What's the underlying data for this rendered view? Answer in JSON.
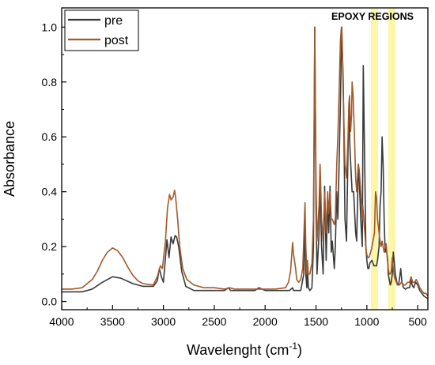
{
  "chart_data": {
    "type": "line",
    "xlabel_main": "Wavelenght (cm",
    "xlabel_sup": "-1",
    "xlabel_end": ")",
    "ylabel": "Absorbance",
    "xlim": [
      4000,
      400
    ],
    "ylim": [
      -0.03,
      1.07
    ],
    "x_reversed": true,
    "x_ticks": [
      4000,
      3500,
      3000,
      2500,
      2000,
      1500,
      1000,
      500
    ],
    "y_ticks": [
      0.0,
      0.2,
      0.4,
      0.6,
      0.8,
      1.0
    ],
    "y_tick_labels": [
      "0.0",
      "0.2",
      "0.4",
      "0.6",
      "0.8",
      "1.0"
    ],
    "annotation": "EPOXY REGIONS",
    "highlight_bands": [
      [
        960,
        890
      ],
      [
        790,
        720
      ]
    ],
    "highlight_color": "#fbf7a6",
    "legend_position": "top-left",
    "series": [
      {
        "name": "pre",
        "color": "#3a3a3a",
        "points": [
          [
            4000,
            0.035
          ],
          [
            3900,
            0.035
          ],
          [
            3800,
            0.035
          ],
          [
            3700,
            0.045
          ],
          [
            3600,
            0.07
          ],
          [
            3500,
            0.09
          ],
          [
            3420,
            0.085
          ],
          [
            3300,
            0.065
          ],
          [
            3200,
            0.055
          ],
          [
            3100,
            0.055
          ],
          [
            3060,
            0.075
          ],
          [
            3040,
            0.12
          ],
          [
            3020,
            0.09
          ],
          [
            3000,
            0.07
          ],
          [
            2965,
            0.225
          ],
          [
            2945,
            0.16
          ],
          [
            2925,
            0.235
          ],
          [
            2905,
            0.21
          ],
          [
            2885,
            0.24
          ],
          [
            2870,
            0.235
          ],
          [
            2850,
            0.2
          ],
          [
            2820,
            0.11
          ],
          [
            2780,
            0.055
          ],
          [
            2700,
            0.04
          ],
          [
            2600,
            0.04
          ],
          [
            2500,
            0.04
          ],
          [
            2400,
            0.04
          ],
          [
            2360,
            0.05
          ],
          [
            2340,
            0.04
          ],
          [
            2200,
            0.04
          ],
          [
            2100,
            0.04
          ],
          [
            2060,
            0.05
          ],
          [
            2000,
            0.04
          ],
          [
            1900,
            0.04
          ],
          [
            1800,
            0.04
          ],
          [
            1760,
            0.04
          ],
          [
            1730,
            0.05
          ],
          [
            1720,
            0.04
          ],
          [
            1650,
            0.04
          ],
          [
            1620,
            0.1
          ],
          [
            1608,
            0.3
          ],
          [
            1600,
            0.1
          ],
          [
            1590,
            0.05
          ],
          [
            1584,
            0.12
          ],
          [
            1575,
            0.05
          ],
          [
            1560,
            0.04
          ],
          [
            1540,
            0.05
          ],
          [
            1525,
            0.2
          ],
          [
            1512,
            1.0
          ],
          [
            1500,
            0.35
          ],
          [
            1490,
            0.1
          ],
          [
            1470,
            0.25
          ],
          [
            1460,
            0.48
          ],
          [
            1455,
            0.35
          ],
          [
            1445,
            0.2
          ],
          [
            1430,
            0.1
          ],
          [
            1415,
            0.42
          ],
          [
            1400,
            0.15
          ],
          [
            1385,
            0.38
          ],
          [
            1375,
            0.25
          ],
          [
            1362,
            0.42
          ],
          [
            1350,
            0.18
          ],
          [
            1340,
            0.22
          ],
          [
            1320,
            0.12
          ],
          [
            1310,
            0.2
          ],
          [
            1296,
            0.4
          ],
          [
            1285,
            0.3
          ],
          [
            1260,
            0.72
          ],
          [
            1247,
            1.0
          ],
          [
            1232,
            0.8
          ],
          [
            1215,
            0.3
          ],
          [
            1200,
            0.22
          ],
          [
            1185,
            0.55
          ],
          [
            1177,
            0.7
          ],
          [
            1165,
            0.55
          ],
          [
            1145,
            0.4
          ],
          [
            1130,
            0.4
          ],
          [
            1110,
            0.25
          ],
          [
            1100,
            0.22
          ],
          [
            1083,
            0.5
          ],
          [
            1075,
            0.45
          ],
          [
            1060,
            0.3
          ],
          [
            1045,
            0.2
          ],
          [
            1035,
            0.86
          ],
          [
            1025,
            0.6
          ],
          [
            1010,
            0.2
          ],
          [
            1000,
            0.15
          ],
          [
            990,
            0.12
          ],
          [
            980,
            0.12
          ],
          [
            970,
            0.14
          ],
          [
            950,
            0.15
          ],
          [
            930,
            0.13
          ],
          [
            915,
            0.13
          ],
          [
            905,
            0.13
          ],
          [
            895,
            0.15
          ],
          [
            880,
            0.2
          ],
          [
            870,
            0.35
          ],
          [
            860,
            0.4
          ],
          [
            850,
            0.6
          ],
          [
            840,
            0.5
          ],
          [
            830,
            0.3
          ],
          [
            820,
            0.18
          ],
          [
            810,
            0.2
          ],
          [
            795,
            0.15
          ],
          [
            790,
            0.1
          ],
          [
            780,
            0.08
          ],
          [
            770,
            0.06
          ],
          [
            760,
            0.07
          ],
          [
            750,
            0.1
          ],
          [
            740,
            0.18
          ],
          [
            730,
            0.14
          ],
          [
            720,
            0.1
          ],
          [
            710,
            0.08
          ],
          [
            700,
            0.06
          ],
          [
            690,
            0.06
          ],
          [
            680,
            0.08
          ],
          [
            667,
            0.12
          ],
          [
            655,
            0.07
          ],
          [
            640,
            0.05
          ],
          [
            620,
            0.045
          ],
          [
            600,
            0.05
          ],
          [
            580,
            0.05
          ],
          [
            565,
            0.08
          ],
          [
            555,
            0.06
          ],
          [
            540,
            0.05
          ],
          [
            520,
            0.07
          ],
          [
            500,
            0.06
          ],
          [
            480,
            0.04
          ],
          [
            460,
            0.03
          ],
          [
            440,
            0.02
          ],
          [
            420,
            0.015
          ],
          [
            400,
            0.01
          ]
        ]
      },
      {
        "name": "post",
        "color": "#a05a2c",
        "points": [
          [
            4000,
            0.045
          ],
          [
            3900,
            0.045
          ],
          [
            3800,
            0.05
          ],
          [
            3700,
            0.08
          ],
          [
            3650,
            0.11
          ],
          [
            3600,
            0.15
          ],
          [
            3550,
            0.18
          ],
          [
            3500,
            0.195
          ],
          [
            3450,
            0.185
          ],
          [
            3400,
            0.16
          ],
          [
            3350,
            0.125
          ],
          [
            3300,
            0.095
          ],
          [
            3250,
            0.075
          ],
          [
            3200,
            0.065
          ],
          [
            3100,
            0.06
          ],
          [
            3060,
            0.09
          ],
          [
            3030,
            0.13
          ],
          [
            3010,
            0.12
          ],
          [
            2980,
            0.22
          ],
          [
            2960,
            0.34
          ],
          [
            2940,
            0.39
          ],
          [
            2925,
            0.37
          ],
          [
            2905,
            0.38
          ],
          [
            2890,
            0.405
          ],
          [
            2880,
            0.38
          ],
          [
            2860,
            0.3
          ],
          [
            2840,
            0.2
          ],
          [
            2810,
            0.12
          ],
          [
            2770,
            0.08
          ],
          [
            2700,
            0.06
          ],
          [
            2600,
            0.05
          ],
          [
            2500,
            0.05
          ],
          [
            2400,
            0.045
          ],
          [
            2350,
            0.05
          ],
          [
            2300,
            0.045
          ],
          [
            2200,
            0.045
          ],
          [
            2100,
            0.045
          ],
          [
            2000,
            0.045
          ],
          [
            1900,
            0.045
          ],
          [
            1800,
            0.05
          ],
          [
            1770,
            0.07
          ],
          [
            1750,
            0.11
          ],
          [
            1730,
            0.215
          ],
          [
            1720,
            0.17
          ],
          [
            1700,
            0.12
          ],
          [
            1690,
            0.08
          ],
          [
            1670,
            0.07
          ],
          [
            1650,
            0.08
          ],
          [
            1630,
            0.12
          ],
          [
            1608,
            0.36
          ],
          [
            1600,
            0.2
          ],
          [
            1590,
            0.1
          ],
          [
            1584,
            0.15
          ],
          [
            1575,
            0.1
          ],
          [
            1560,
            0.1
          ],
          [
            1540,
            0.14
          ],
          [
            1525,
            0.3
          ],
          [
            1512,
            1.0
          ],
          [
            1500,
            0.45
          ],
          [
            1490,
            0.22
          ],
          [
            1470,
            0.35
          ],
          [
            1460,
            0.5
          ],
          [
            1455,
            0.44
          ],
          [
            1445,
            0.3
          ],
          [
            1430,
            0.22
          ],
          [
            1415,
            0.4
          ],
          [
            1400,
            0.25
          ],
          [
            1385,
            0.4
          ],
          [
            1375,
            0.32
          ],
          [
            1362,
            0.4
          ],
          [
            1350,
            0.3
          ],
          [
            1340,
            0.3
          ],
          [
            1320,
            0.28
          ],
          [
            1310,
            0.3
          ],
          [
            1296,
            0.5
          ],
          [
            1285,
            0.6
          ],
          [
            1270,
            0.8
          ],
          [
            1260,
            0.95
          ],
          [
            1250,
            1.0
          ],
          [
            1240,
            0.9
          ],
          [
            1232,
            0.75
          ],
          [
            1215,
            0.5
          ],
          [
            1200,
            0.45
          ],
          [
            1185,
            0.6
          ],
          [
            1177,
            0.72
          ],
          [
            1170,
            0.75
          ],
          [
            1160,
            0.62
          ],
          [
            1150,
            0.68
          ],
          [
            1145,
            0.8
          ],
          [
            1135,
            0.75
          ],
          [
            1120,
            0.58
          ],
          [
            1110,
            0.45
          ],
          [
            1100,
            0.4
          ],
          [
            1085,
            0.5
          ],
          [
            1075,
            0.48
          ],
          [
            1060,
            0.4
          ],
          [
            1045,
            0.3
          ],
          [
            1040,
            0.35
          ],
          [
            1030,
            0.3
          ],
          [
            1010,
            0.2
          ],
          [
            1000,
            0.17
          ],
          [
            990,
            0.16
          ],
          [
            980,
            0.16
          ],
          [
            970,
            0.17
          ],
          [
            955,
            0.19
          ],
          [
            940,
            0.22
          ],
          [
            925,
            0.25
          ],
          [
            915,
            0.4
          ],
          [
            905,
            0.38
          ],
          [
            895,
            0.3
          ],
          [
            880,
            0.25
          ],
          [
            870,
            0.22
          ],
          [
            860,
            0.2
          ],
          [
            850,
            0.22
          ],
          [
            840,
            0.2
          ],
          [
            830,
            0.18
          ],
          [
            820,
            0.2
          ],
          [
            810,
            0.21
          ],
          [
            800,
            0.16
          ],
          [
            790,
            0.12
          ],
          [
            780,
            0.1
          ],
          [
            770,
            0.1
          ],
          [
            760,
            0.11
          ],
          [
            750,
            0.16
          ],
          [
            740,
            0.12
          ],
          [
            730,
            0.09
          ],
          [
            720,
            0.08
          ],
          [
            700,
            0.06
          ],
          [
            680,
            0.06
          ],
          [
            660,
            0.07
          ],
          [
            640,
            0.06
          ],
          [
            620,
            0.06
          ],
          [
            600,
            0.07
          ],
          [
            580,
            0.07
          ],
          [
            565,
            0.09
          ],
          [
            550,
            0.07
          ],
          [
            530,
            0.07
          ],
          [
            515,
            0.08
          ],
          [
            500,
            0.07
          ],
          [
            480,
            0.05
          ],
          [
            460,
            0.04
          ],
          [
            440,
            0.03
          ],
          [
            420,
            0.03
          ],
          [
            400,
            0.02
          ]
        ]
      }
    ]
  }
}
